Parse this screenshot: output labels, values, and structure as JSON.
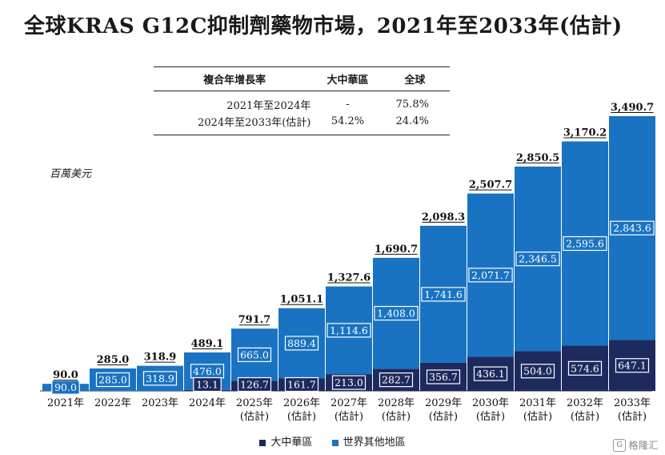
{
  "title": "全球KRAS G12C抑制劑藥物市場，2021年至2033年(估計)",
  "unit_label": "百萬美元",
  "cagr_table": {
    "headers": [
      "複合年增長率",
      "大中華區",
      "全球"
    ],
    "rows": [
      {
        "period": "2021年至2024年",
        "china": "-",
        "global": "75.8%"
      },
      {
        "period": "2024年至2033年(估計)",
        "china": "54.2%",
        "global": "24.4%"
      }
    ]
  },
  "chart_data": {
    "type": "bar",
    "stacked": true,
    "categories": [
      "2021年",
      "2022年",
      "2023年",
      "2024年",
      "2025年",
      "2026年",
      "2027年",
      "2028年",
      "2029年",
      "2030年",
      "2031年",
      "2032年",
      "2033年"
    ],
    "category_sublabels": [
      "",
      "",
      "",
      "",
      "(估計)",
      "(估計)",
      "(估計)",
      "(估計)",
      "(估計)",
      "(估計)",
      "(估計)",
      "(估計)",
      "(估計)"
    ],
    "series": [
      {
        "name": "大中華區",
        "color": "#1c2a5e",
        "values": [
          0,
          0,
          0,
          13.1,
          126.7,
          161.7,
          213.0,
          282.7,
          356.7,
          436.1,
          504.0,
          574.6,
          647.1
        ],
        "labels": [
          "",
          "",
          "",
          "13.1",
          "126.7",
          "161.7",
          "213.0",
          "282.7",
          "356.7",
          "436.1",
          "504.0",
          "574.6",
          "647.1"
        ]
      },
      {
        "name": "世界其他地區",
        "color": "#1a73c2",
        "values": [
          90.0,
          285.0,
          318.9,
          476.0,
          665.0,
          889.4,
          1114.6,
          1408.0,
          1741.6,
          2071.7,
          2346.5,
          2595.6,
          2843.6
        ],
        "labels": [
          "90.0",
          "285.0",
          "318.9",
          "476.0",
          "665.0",
          "889.4",
          "1,114.6",
          "1,408.0",
          "1,741.6",
          "2,071.7",
          "2,346.5",
          "2,595.6",
          "2,843.6"
        ]
      }
    ],
    "totals": [
      "90.0",
      "285.0",
      "318.9",
      "489.1",
      "791.7",
      "1,051.1",
      "1,327.6",
      "1,690.7",
      "2,098.3",
      "2,507.7",
      "2,850.5",
      "3,170.2",
      "3,490.7"
    ],
    "total_values": [
      90.0,
      285.0,
      318.9,
      489.1,
      791.7,
      1051.1,
      1327.6,
      1690.7,
      2098.3,
      2507.7,
      2850.5,
      3170.2,
      3490.7
    ],
    "ylim": [
      0,
      3490.7
    ],
    "grid": false,
    "legend_position": "bottom"
  },
  "watermark": {
    "logo": "G",
    "text": "格隆汇"
  }
}
